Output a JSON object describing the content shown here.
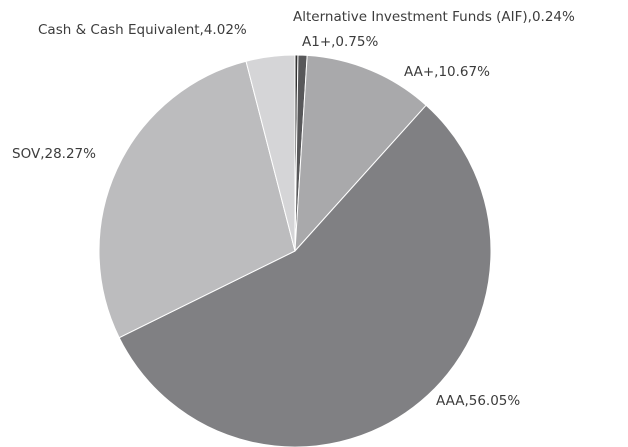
{
  "chart_data": {
    "type": "pie",
    "values": [
      0.24,
      0.75,
      10.67,
      56.05,
      28.27,
      4.02
    ],
    "value_labels": [
      "Alternative Investment Funds (AIF),0.24%",
      "A1+,0.75%",
      "AA+,10.67%",
      "AAA,56.05%",
      "SOV,28.27%",
      "Cash & Cash Equivalent,4.02%"
    ],
    "colors": [
      "#333333",
      "#58585a",
      "#a9a9ab",
      "#808083",
      "#bcbcbe",
      "#d5d5d7"
    ]
  }
}
